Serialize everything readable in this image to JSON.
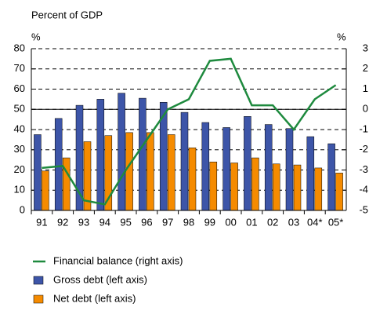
{
  "chart_data": {
    "type": "bar-line",
    "title": "Percent of GDP",
    "y_unit": "%",
    "y2_unit": "%",
    "categories": [
      "91",
      "92",
      "93",
      "94",
      "95",
      "96",
      "97",
      "98",
      "99",
      "00",
      "01",
      "02",
      "03",
      "04*",
      "05*"
    ],
    "series": [
      {
        "name": "Financial balance (right axis)",
        "type": "line",
        "axis": "y2",
        "color": "#1e8a3e",
        "values": [
          -2.9,
          -2.8,
          -4.5,
          -4.7,
          -3.0,
          -1.5,
          0,
          0.5,
          2.4,
          2.5,
          0.2,
          0.2,
          -1.0,
          0.5,
          1.2
        ]
      },
      {
        "name": "Gross debt (left axis)",
        "type": "bar",
        "color": "#3d55a8",
        "values": [
          37.5,
          45.5,
          52,
          55,
          58,
          55.5,
          53.5,
          48.5,
          43.5,
          41,
          46.5,
          42.5,
          40.5,
          36.5,
          33
        ]
      },
      {
        "name": "Net debt (left axis)",
        "type": "bar",
        "color": "#f58b00",
        "values": [
          19.5,
          26,
          34,
          37,
          38.5,
          38.5,
          37.5,
          31,
          24,
          23.5,
          26,
          23,
          22.5,
          21,
          18.5
        ]
      }
    ],
    "ylim": [
      0,
      80
    ],
    "yticks": [
      0,
      10,
      20,
      30,
      40,
      50,
      60,
      70,
      80
    ],
    "y2lim": [
      -5,
      3
    ],
    "y2ticks": [
      -5,
      -4,
      -3,
      -2,
      -1,
      0,
      1,
      2,
      3
    ],
    "grid": true
  }
}
